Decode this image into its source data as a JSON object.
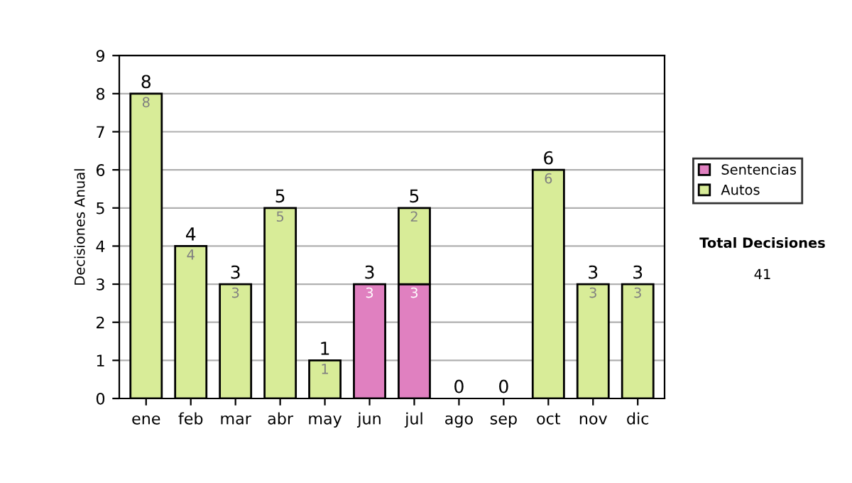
{
  "chart_data": {
    "type": "bar",
    "stacked": true,
    "ylabel": "Decisiones Anual",
    "categories": [
      "ene",
      "feb",
      "mar",
      "abr",
      "may",
      "jun",
      "jul",
      "ago",
      "sep",
      "oct",
      "nov",
      "dic"
    ],
    "series": [
      {
        "name": "Sentencias",
        "color": "#e080c0",
        "values": [
          0,
          0,
          0,
          0,
          0,
          3,
          3,
          0,
          0,
          0,
          0,
          0
        ],
        "value_labels": [
          null,
          null,
          null,
          null,
          null,
          "3",
          "3",
          null,
          null,
          null,
          null,
          null
        ]
      },
      {
        "name": "Autos",
        "color": "#d8ec98",
        "values": [
          8,
          4,
          3,
          5,
          1,
          0,
          2,
          0,
          0,
          6,
          3,
          3
        ],
        "value_labels": [
          "8",
          "4",
          "3",
          "5",
          "1",
          null,
          "2",
          null,
          null,
          "6",
          "3",
          "3"
        ]
      }
    ],
    "totals": [
      "8",
      "4",
      "3",
      "5",
      "1",
      "3",
      "5",
      "0",
      "0",
      "6",
      "3",
      "3"
    ],
    "ylim": [
      0,
      9
    ],
    "yticks": [
      0,
      1,
      2,
      3,
      4,
      5,
      6,
      7,
      8,
      9
    ],
    "grid": "y",
    "legend": "right",
    "annotations": [
      "Total Decisiones",
      "41"
    ]
  }
}
